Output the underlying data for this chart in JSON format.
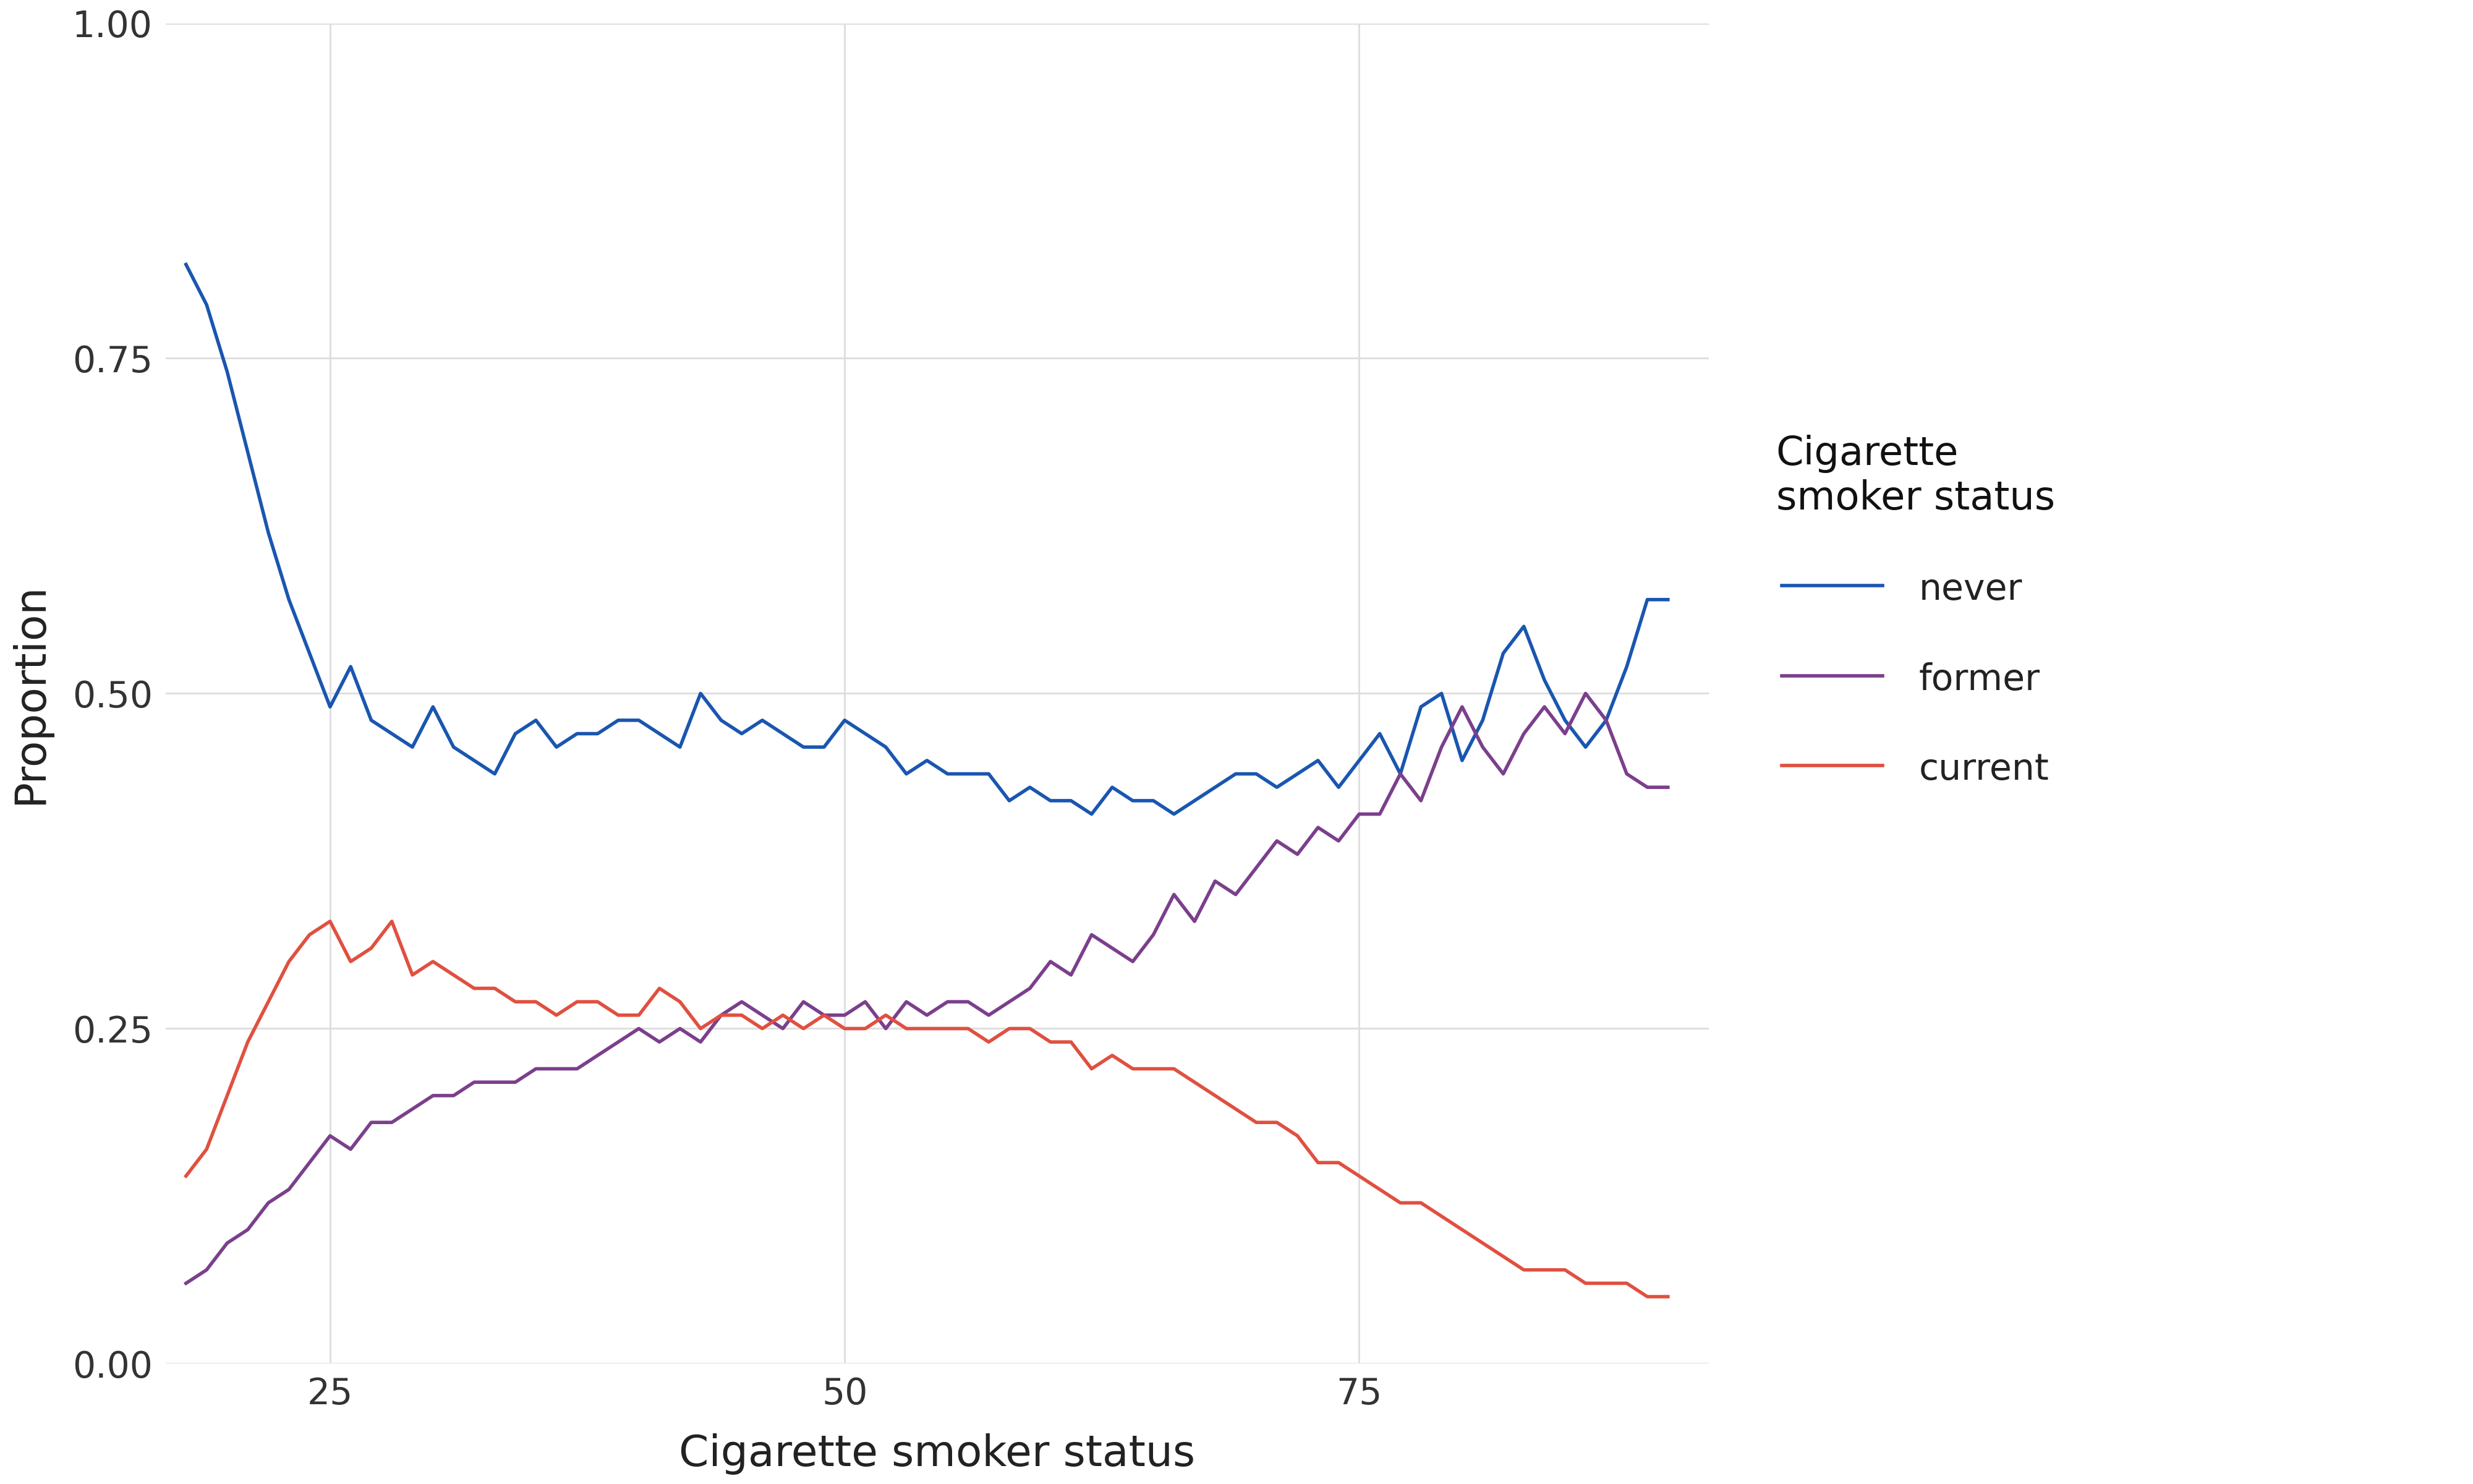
{
  "title": "",
  "xlabel": "Cigarette smoker status",
  "ylabel": "Proportion",
  "legend_title": "Cigarette\nsmoker status",
  "legend_labels": [
    "never",
    "former",
    "current"
  ],
  "line_colors": [
    "#1a56b0",
    "#7B3F8C",
    "#E05040"
  ],
  "xlim": [
    17,
    92
  ],
  "ylim": [
    0.0,
    1.0
  ],
  "xticks": [
    25,
    50,
    75
  ],
  "yticks": [
    0.0,
    0.25,
    0.5,
    0.75,
    1.0
  ],
  "background_color": "#FFFFFF",
  "grid_color": "#DDDDDD",
  "ages": [
    18,
    19,
    20,
    21,
    22,
    23,
    24,
    25,
    26,
    27,
    28,
    29,
    30,
    31,
    32,
    33,
    34,
    35,
    36,
    37,
    38,
    39,
    40,
    41,
    42,
    43,
    44,
    45,
    46,
    47,
    48,
    49,
    50,
    51,
    52,
    53,
    54,
    55,
    56,
    57,
    58,
    59,
    60,
    61,
    62,
    63,
    64,
    65,
    66,
    67,
    68,
    69,
    70,
    71,
    72,
    73,
    74,
    75,
    76,
    77,
    78,
    79,
    80,
    81,
    82,
    83,
    84,
    85,
    86,
    87,
    88,
    89,
    90
  ],
  "never": [
    0.82,
    0.79,
    0.74,
    0.68,
    0.62,
    0.57,
    0.53,
    0.49,
    0.52,
    0.48,
    0.47,
    0.46,
    0.49,
    0.46,
    0.45,
    0.44,
    0.47,
    0.48,
    0.46,
    0.47,
    0.47,
    0.48,
    0.48,
    0.47,
    0.46,
    0.5,
    0.48,
    0.47,
    0.48,
    0.47,
    0.46,
    0.46,
    0.48,
    0.47,
    0.46,
    0.44,
    0.45,
    0.44,
    0.44,
    0.44,
    0.42,
    0.43,
    0.42,
    0.42,
    0.41,
    0.43,
    0.42,
    0.42,
    0.41,
    0.42,
    0.43,
    0.44,
    0.44,
    0.43,
    0.44,
    0.45,
    0.43,
    0.45,
    0.47,
    0.44,
    0.49,
    0.5,
    0.45,
    0.48,
    0.53,
    0.55,
    0.51,
    0.48,
    0.46,
    0.48,
    0.52,
    0.57,
    0.57
  ],
  "former": [
    0.06,
    0.07,
    0.09,
    0.1,
    0.12,
    0.13,
    0.15,
    0.17,
    0.16,
    0.18,
    0.18,
    0.19,
    0.2,
    0.2,
    0.21,
    0.21,
    0.21,
    0.22,
    0.22,
    0.22,
    0.23,
    0.24,
    0.25,
    0.24,
    0.25,
    0.24,
    0.26,
    0.27,
    0.26,
    0.25,
    0.27,
    0.26,
    0.26,
    0.27,
    0.25,
    0.27,
    0.26,
    0.27,
    0.27,
    0.26,
    0.27,
    0.28,
    0.3,
    0.29,
    0.32,
    0.31,
    0.3,
    0.32,
    0.35,
    0.33,
    0.36,
    0.35,
    0.37,
    0.39,
    0.38,
    0.4,
    0.39,
    0.41,
    0.41,
    0.44,
    0.42,
    0.46,
    0.49,
    0.46,
    0.44,
    0.47,
    0.49,
    0.47,
    0.5,
    0.48,
    0.44,
    0.43,
    0.43
  ],
  "current": [
    0.14,
    0.16,
    0.2,
    0.24,
    0.27,
    0.3,
    0.32,
    0.33,
    0.3,
    0.31,
    0.33,
    0.29,
    0.3,
    0.29,
    0.28,
    0.28,
    0.27,
    0.27,
    0.26,
    0.27,
    0.27,
    0.26,
    0.26,
    0.28,
    0.27,
    0.25,
    0.26,
    0.26,
    0.25,
    0.26,
    0.25,
    0.26,
    0.25,
    0.25,
    0.26,
    0.25,
    0.25,
    0.25,
    0.25,
    0.24,
    0.25,
    0.25,
    0.24,
    0.24,
    0.22,
    0.23,
    0.22,
    0.22,
    0.22,
    0.21,
    0.2,
    0.19,
    0.18,
    0.18,
    0.17,
    0.15,
    0.15,
    0.14,
    0.13,
    0.12,
    0.12,
    0.11,
    0.1,
    0.09,
    0.08,
    0.07,
    0.07,
    0.07,
    0.06,
    0.06,
    0.06,
    0.05,
    0.05
  ]
}
